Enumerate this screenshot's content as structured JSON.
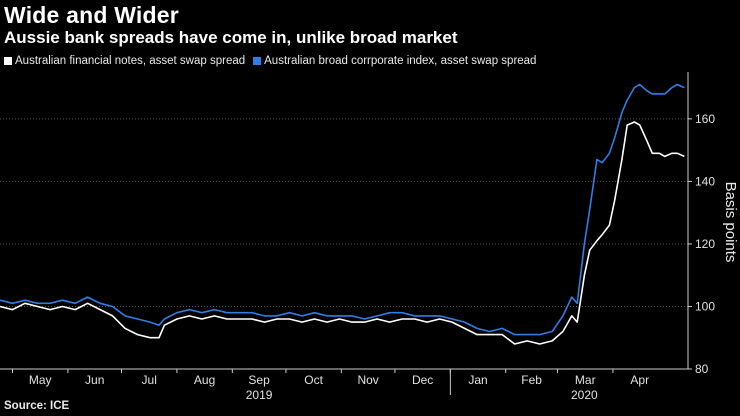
{
  "chart_data": {
    "type": "line",
    "title": "Wide and Wider",
    "subtitle": "Aussie bank spreads have come in, unlike broad market",
    "ylabel": "Basis points",
    "xlabel": "",
    "source": "Source: ICE",
    "ylim": [
      80,
      175
    ],
    "yticks": [
      80,
      100,
      120,
      140,
      160
    ],
    "grid": true,
    "legend_position": "top-left",
    "x_tick_labels": [
      "May",
      "Jun",
      "Jul",
      "Aug",
      "Sep",
      "Oct",
      "Nov",
      "Dec",
      "Jan",
      "Feb",
      "Mar",
      "Apr"
    ],
    "x_tick_dates": [
      "2019-05-01",
      "2019-06-01",
      "2019-07-01",
      "2019-08-01",
      "2019-09-01",
      "2019-10-01",
      "2019-11-01",
      "2019-12-01",
      "2020-01-01",
      "2020-02-01",
      "2020-03-01",
      "2020-04-01"
    ],
    "year_labels": [
      {
        "label": "2019",
        "date": "2019-09-01"
      },
      {
        "label": "2020",
        "date": "2020-03-01"
      }
    ],
    "series": [
      {
        "name": "Australian financial notes, asset swap spread",
        "color": "#ffffff",
        "points": [
          [
            "2019-04-24",
            100
          ],
          [
            "2019-05-01",
            99
          ],
          [
            "2019-05-08",
            101
          ],
          [
            "2019-05-15",
            100
          ],
          [
            "2019-05-22",
            99
          ],
          [
            "2019-05-29",
            100
          ],
          [
            "2019-06-05",
            99
          ],
          [
            "2019-06-12",
            101
          ],
          [
            "2019-06-19",
            99
          ],
          [
            "2019-06-26",
            97
          ],
          [
            "2019-07-03",
            93
          ],
          [
            "2019-07-10",
            91
          ],
          [
            "2019-07-17",
            90
          ],
          [
            "2019-07-22",
            90
          ],
          [
            "2019-07-25",
            94
          ],
          [
            "2019-08-01",
            96
          ],
          [
            "2019-08-08",
            97
          ],
          [
            "2019-08-15",
            96
          ],
          [
            "2019-08-22",
            97
          ],
          [
            "2019-08-29",
            96
          ],
          [
            "2019-09-05",
            96
          ],
          [
            "2019-09-12",
            96
          ],
          [
            "2019-09-19",
            95
          ],
          [
            "2019-09-26",
            96
          ],
          [
            "2019-10-03",
            96
          ],
          [
            "2019-10-10",
            95
          ],
          [
            "2019-10-17",
            96
          ],
          [
            "2019-10-24",
            95
          ],
          [
            "2019-10-31",
            96
          ],
          [
            "2019-11-07",
            95
          ],
          [
            "2019-11-14",
            95
          ],
          [
            "2019-11-21",
            96
          ],
          [
            "2019-11-28",
            95
          ],
          [
            "2019-12-05",
            96
          ],
          [
            "2019-12-12",
            96
          ],
          [
            "2019-12-19",
            95
          ],
          [
            "2019-12-26",
            96
          ],
          [
            "2020-01-02",
            95
          ],
          [
            "2020-01-09",
            93
          ],
          [
            "2020-01-16",
            91
          ],
          [
            "2020-01-23",
            91
          ],
          [
            "2020-01-30",
            91
          ],
          [
            "2020-02-06",
            88
          ],
          [
            "2020-02-13",
            89
          ],
          [
            "2020-02-20",
            88
          ],
          [
            "2020-02-27",
            89
          ],
          [
            "2020-03-04",
            92
          ],
          [
            "2020-03-09",
            97
          ],
          [
            "2020-03-12",
            95
          ],
          [
            "2020-03-16",
            110
          ],
          [
            "2020-03-19",
            118
          ],
          [
            "2020-03-23",
            121
          ],
          [
            "2020-03-26",
            123
          ],
          [
            "2020-03-30",
            126
          ],
          [
            "2020-04-02",
            134
          ],
          [
            "2020-04-06",
            147
          ],
          [
            "2020-04-09",
            158
          ],
          [
            "2020-04-13",
            159
          ],
          [
            "2020-04-16",
            158
          ],
          [
            "2020-04-20",
            153
          ],
          [
            "2020-04-23",
            149
          ],
          [
            "2020-04-27",
            149
          ],
          [
            "2020-04-30",
            148
          ],
          [
            "2020-05-04",
            149
          ],
          [
            "2020-05-07",
            149
          ],
          [
            "2020-05-11",
            148
          ]
        ]
      },
      {
        "name": "Australian broad corrporate index, asset swap spread",
        "color": "#2f7ee6",
        "points": [
          [
            "2019-04-24",
            102
          ],
          [
            "2019-05-01",
            101
          ],
          [
            "2019-05-08",
            102
          ],
          [
            "2019-05-15",
            101
          ],
          [
            "2019-05-22",
            101
          ],
          [
            "2019-05-29",
            102
          ],
          [
            "2019-06-05",
            101
          ],
          [
            "2019-06-12",
            103
          ],
          [
            "2019-06-19",
            101
          ],
          [
            "2019-06-26",
            100
          ],
          [
            "2019-07-03",
            97
          ],
          [
            "2019-07-10",
            96
          ],
          [
            "2019-07-17",
            95
          ],
          [
            "2019-07-22",
            94
          ],
          [
            "2019-07-25",
            96
          ],
          [
            "2019-08-01",
            98
          ],
          [
            "2019-08-08",
            99
          ],
          [
            "2019-08-15",
            98
          ],
          [
            "2019-08-22",
            99
          ],
          [
            "2019-08-29",
            98
          ],
          [
            "2019-09-05",
            98
          ],
          [
            "2019-09-12",
            98
          ],
          [
            "2019-09-19",
            97
          ],
          [
            "2019-09-26",
            97
          ],
          [
            "2019-10-03",
            98
          ],
          [
            "2019-10-10",
            97
          ],
          [
            "2019-10-17",
            98
          ],
          [
            "2019-10-24",
            97
          ],
          [
            "2019-10-31",
            97
          ],
          [
            "2019-11-07",
            97
          ],
          [
            "2019-11-14",
            96
          ],
          [
            "2019-11-21",
            97
          ],
          [
            "2019-11-28",
            98
          ],
          [
            "2019-12-05",
            98
          ],
          [
            "2019-12-12",
            97
          ],
          [
            "2019-12-19",
            97
          ],
          [
            "2019-12-26",
            97
          ],
          [
            "2020-01-02",
            96
          ],
          [
            "2020-01-09",
            95
          ],
          [
            "2020-01-16",
            93
          ],
          [
            "2020-01-23",
            92
          ],
          [
            "2020-01-30",
            93
          ],
          [
            "2020-02-06",
            91
          ],
          [
            "2020-02-13",
            91
          ],
          [
            "2020-02-20",
            91
          ],
          [
            "2020-02-27",
            92
          ],
          [
            "2020-03-04",
            97
          ],
          [
            "2020-03-09",
            103
          ],
          [
            "2020-03-12",
            101
          ],
          [
            "2020-03-16",
            120
          ],
          [
            "2020-03-19",
            131
          ],
          [
            "2020-03-23",
            147
          ],
          [
            "2020-03-26",
            146
          ],
          [
            "2020-03-30",
            149
          ],
          [
            "2020-04-02",
            154
          ],
          [
            "2020-04-06",
            162
          ],
          [
            "2020-04-09",
            166
          ],
          [
            "2020-04-13",
            170
          ],
          [
            "2020-04-16",
            171
          ],
          [
            "2020-04-20",
            169
          ],
          [
            "2020-04-23",
            168
          ],
          [
            "2020-04-27",
            168
          ],
          [
            "2020-04-30",
            168
          ],
          [
            "2020-05-04",
            170
          ],
          [
            "2020-05-07",
            171
          ],
          [
            "2020-05-11",
            170
          ]
        ]
      }
    ]
  }
}
